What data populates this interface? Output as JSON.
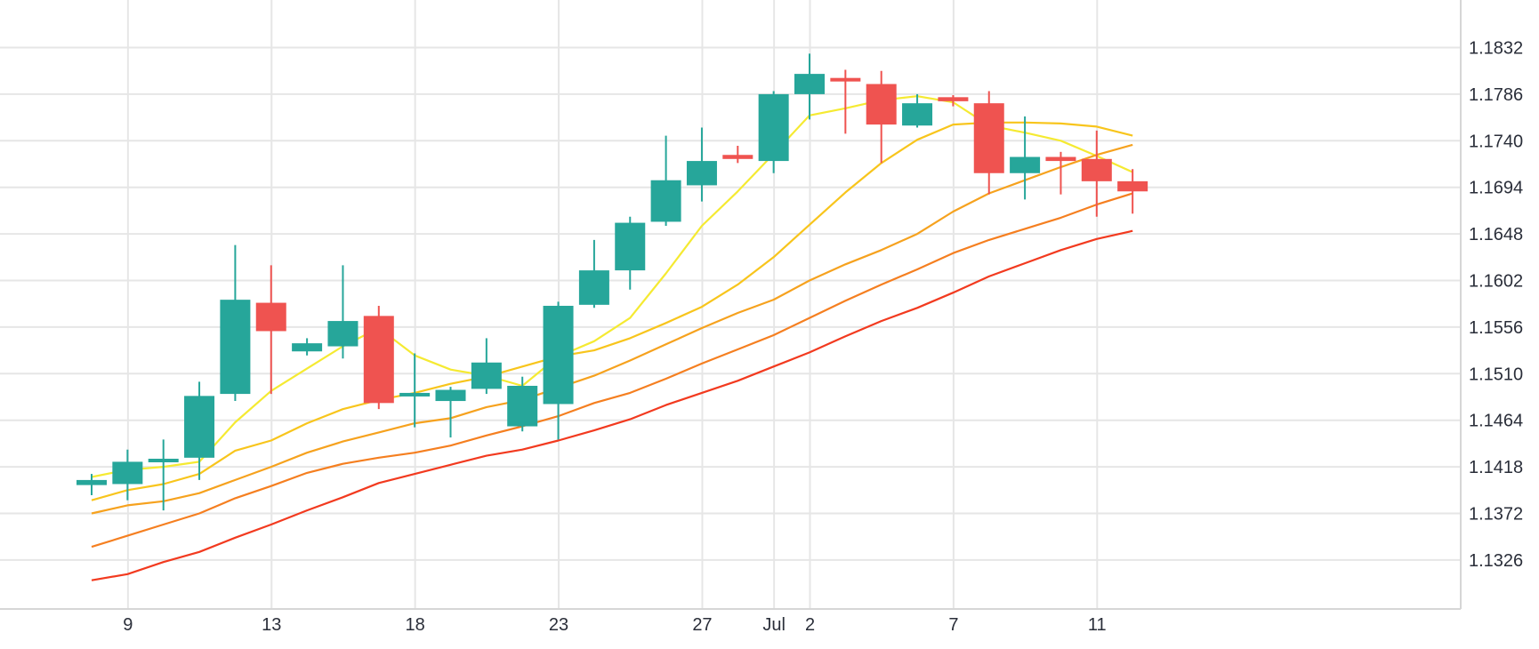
{
  "chart_data": {
    "type": "candlestick",
    "title": "",
    "xlabel": "",
    "ylabel": "",
    "grid": true,
    "colors": {
      "up": "#26a69a",
      "down": "#ef5350",
      "grid": "#e6e6e6",
      "axis_text": "#2a2e39"
    },
    "y_ticks": [
      "1.1832",
      "1.1786",
      "1.1740",
      "1.1694",
      "1.1648",
      "1.1602",
      "1.1556",
      "1.1510",
      "1.1464",
      "1.1418",
      "1.1372",
      "1.1326"
    ],
    "ylim": [
      1.128,
      1.186
    ],
    "x_ticks": [
      {
        "label": "9",
        "index": 1
      },
      {
        "label": "13",
        "index": 5
      },
      {
        "label": "18",
        "index": 9
      },
      {
        "label": "23",
        "index": 13
      },
      {
        "label": "27",
        "index": 17
      },
      {
        "label": "Jul",
        "index": 19
      },
      {
        "label": "2",
        "index": 20
      },
      {
        "label": "7",
        "index": 24
      },
      {
        "label": "11",
        "index": 28
      }
    ],
    "candles": [
      {
        "o": 1.14,
        "h": 1.1411,
        "l": 1.139,
        "c": 1.1405
      },
      {
        "o": 1.1401,
        "h": 1.1435,
        "l": 1.1385,
        "c": 1.1423
      },
      {
        "o": 1.1424,
        "h": 1.1445,
        "l": 1.1375,
        "c": 1.1426
      },
      {
        "o": 1.1427,
        "h": 1.1502,
        "l": 1.1405,
        "c": 1.1488
      },
      {
        "o": 1.149,
        "h": 1.1637,
        "l": 1.1483,
        "c": 1.1583
      },
      {
        "o": 1.158,
        "h": 1.1617,
        "l": 1.149,
        "c": 1.1552
      },
      {
        "o": 1.1532,
        "h": 1.1545,
        "l": 1.1528,
        "c": 1.154
      },
      {
        "o": 1.1537,
        "h": 1.1617,
        "l": 1.1525,
        "c": 1.1562
      },
      {
        "o": 1.1567,
        "h": 1.1577,
        "l": 1.1475,
        "c": 1.1481
      },
      {
        "o": 1.149,
        "h": 1.153,
        "l": 1.1457,
        "c": 1.1491
      },
      {
        "o": 1.1483,
        "h": 1.1497,
        "l": 1.1447,
        "c": 1.1494
      },
      {
        "o": 1.1495,
        "h": 1.1545,
        "l": 1.149,
        "c": 1.1521
      },
      {
        "o": 1.1458,
        "h": 1.1507,
        "l": 1.1453,
        "c": 1.1498
      },
      {
        "o": 1.148,
        "h": 1.1581,
        "l": 1.1445,
        "c": 1.1577
      },
      {
        "o": 1.1578,
        "h": 1.1642,
        "l": 1.1575,
        "c": 1.1612
      },
      {
        "o": 1.1612,
        "h": 1.1665,
        "l": 1.1593,
        "c": 1.1659
      },
      {
        "o": 1.166,
        "h": 1.1745,
        "l": 1.1656,
        "c": 1.1701
      },
      {
        "o": 1.1696,
        "h": 1.1753,
        "l": 1.168,
        "c": 1.172
      },
      {
        "o": 1.1726,
        "h": 1.1735,
        "l": 1.1718,
        "c": 1.1722
      },
      {
        "o": 1.172,
        "h": 1.1789,
        "l": 1.1708,
        "c": 1.1786
      },
      {
        "o": 1.1786,
        "h": 1.1826,
        "l": 1.1761,
        "c": 1.1806
      },
      {
        "o": 1.1802,
        "h": 1.181,
        "l": 1.1747,
        "c": 1.1799
      },
      {
        "o": 1.1796,
        "h": 1.1809,
        "l": 1.1718,
        "c": 1.1756
      },
      {
        "o": 1.1755,
        "h": 1.1786,
        "l": 1.1753,
        "c": 1.1777
      },
      {
        "o": 1.1783,
        "h": 1.1785,
        "l": 1.1774,
        "c": 1.1779
      },
      {
        "o": 1.1777,
        "h": 1.1789,
        "l": 1.1687,
        "c": 1.1708
      },
      {
        "o": 1.1708,
        "h": 1.1764,
        "l": 1.1682,
        "c": 1.1724
      },
      {
        "o": 1.1724,
        "h": 1.1729,
        "l": 1.1687,
        "c": 1.172
      },
      {
        "o": 1.1722,
        "h": 1.175,
        "l": 1.1665,
        "c": 1.17
      },
      {
        "o": 1.17,
        "h": 1.1712,
        "l": 1.1668,
        "c": 1.169
      }
    ],
    "series": [
      {
        "color": "#f5ea32",
        "x_start": 0,
        "values": [
          1.1408,
          1.1415,
          1.1418,
          1.1423,
          1.1462,
          1.1493,
          1.1515,
          1.1537,
          1.1555,
          1.1528,
          1.1514,
          1.1508,
          1.1498,
          1.1527,
          1.1542,
          1.1565,
          1.1609,
          1.1656,
          1.169,
          1.1727,
          1.1765,
          1.1772,
          1.178,
          1.1784,
          1.1778,
          1.1755,
          1.1748,
          1.174,
          1.1725,
          1.1709
        ]
      },
      {
        "color": "#f8c51c",
        "x_start": 0,
        "values": [
          1.1385,
          1.1395,
          1.1401,
          1.1411,
          1.1434,
          1.1444,
          1.1461,
          1.1475,
          1.1484,
          1.1491,
          1.15,
          1.1507,
          1.1517,
          1.1527,
          1.1533,
          1.1545,
          1.156,
          1.1576,
          1.1598,
          1.1625,
          1.1657,
          1.1689,
          1.1718,
          1.1741,
          1.1756,
          1.1758,
          1.1758,
          1.1757,
          1.1754,
          1.1745
        ]
      },
      {
        "color": "#f6a21e",
        "x_start": 0,
        "values": [
          1.1372,
          1.138,
          1.1384,
          1.1392,
          1.1405,
          1.1418,
          1.1432,
          1.1443,
          1.1452,
          1.1461,
          1.1466,
          1.1477,
          1.1484,
          1.1496,
          1.1508,
          1.1523,
          1.1539,
          1.1555,
          1.157,
          1.1583,
          1.1602,
          1.1618,
          1.1632,
          1.1648,
          1.167,
          1.1688,
          1.1701,
          1.1714,
          1.1726,
          1.1736
        ]
      },
      {
        "color": "#f57f20",
        "x_start": 0,
        "values": [
          1.1339,
          1.135,
          1.1361,
          1.1372,
          1.1387,
          1.1399,
          1.1412,
          1.1421,
          1.1427,
          1.1432,
          1.1439,
          1.1449,
          1.1458,
          1.1468,
          1.1481,
          1.1491,
          1.1505,
          1.152,
          1.1534,
          1.1548,
          1.1565,
          1.1582,
          1.1598,
          1.1613,
          1.1629,
          1.1642,
          1.1653,
          1.1664,
          1.1677,
          1.1688
        ]
      },
      {
        "color": "#f23a1f",
        "x_start": 0,
        "values": [
          1.1306,
          1.1312,
          1.1324,
          1.1334,
          1.1348,
          1.1361,
          1.1375,
          1.1388,
          1.1402,
          1.1411,
          1.142,
          1.1429,
          1.1435,
          1.1444,
          1.1454,
          1.1465,
          1.1479,
          1.1491,
          1.1503,
          1.1517,
          1.1531,
          1.1547,
          1.1562,
          1.1575,
          1.159,
          1.1606,
          1.1619,
          1.1632,
          1.1643,
          1.1651
        ]
      }
    ]
  }
}
